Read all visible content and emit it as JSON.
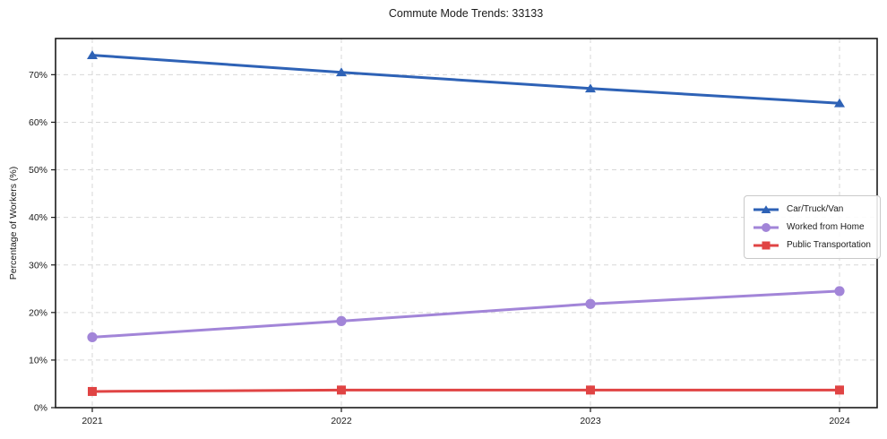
{
  "chart_data": {
    "type": "line",
    "title": "Commute Mode Trends: 33133",
    "xlabel": "",
    "ylabel": "Percentage of Workers (%)",
    "x": [
      "2021",
      "2022",
      "2023",
      "2024"
    ],
    "ylim": [
      0,
      77.6
    ],
    "yticks": [
      0,
      10,
      20,
      30,
      40,
      50,
      60,
      70
    ],
    "ytick_labels": [
      "0%",
      "10%",
      "20%",
      "30%",
      "40%",
      "50%",
      "60%",
      "70%"
    ],
    "grid": true,
    "grid_style": "dashed",
    "legend_position": "center-right-inside",
    "colors": {
      "grid": "#d7d7d7",
      "spine": "#1a1a1a",
      "background": "#ffffff"
    },
    "series": [
      {
        "name": "Car/Truck/Van",
        "marker": "triangle",
        "color": "#2e62b6",
        "values": [
          74.1,
          70.5,
          67.1,
          64.0
        ]
      },
      {
        "name": "Worked from Home",
        "marker": "circle",
        "color": "#a285d8",
        "values": [
          14.8,
          18.2,
          21.8,
          24.5
        ]
      },
      {
        "name": "Public Transportation",
        "marker": "square",
        "color": "#e04444",
        "values": [
          3.4,
          3.7,
          3.7,
          3.7
        ]
      }
    ]
  }
}
